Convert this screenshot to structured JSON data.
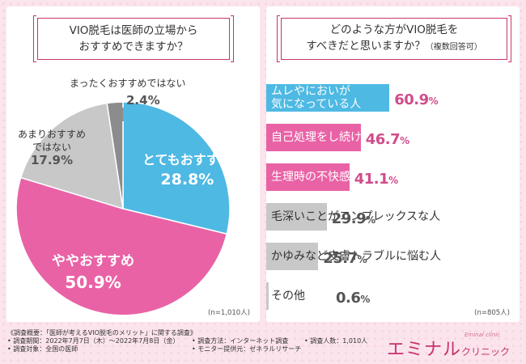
{
  "left": {
    "question_lines": [
      "VIO脱毛は医師の立場から",
      "おすすめできますか？"
    ],
    "sample_note": "(n=1,010人)"
  },
  "right": {
    "question_lines": [
      "どのような方がVIO脱毛を",
      "すべきだと思いますか？"
    ],
    "question_note": "（複数回答可）",
    "sample_note": "(n=805人)"
  },
  "chart_data": [
    {
      "type": "pie",
      "title": "VIO脱毛は医師の立場からおすすめできますか？",
      "unit": "%",
      "slices": [
        {
          "label": "とてもおすすめ",
          "value": 28.8,
          "color": "#4eb9e3"
        },
        {
          "label": "ややおすすめ",
          "value": 50.9,
          "color": "#e962a6"
        },
        {
          "label": "あまりおすすめではない",
          "label_lines": [
            "あまりおすすめ",
            "ではない"
          ],
          "value": 17.9,
          "color": "#c8c8c8"
        },
        {
          "label": "まったくおすすめではない",
          "value": 2.4,
          "color": "#8c8c8c"
        }
      ],
      "value_texts": [
        "28.8%",
        "50.9%",
        "17.9%",
        "2.4%"
      ]
    },
    {
      "type": "bar",
      "orientation": "horizontal",
      "title": "どのような方がVIO脱毛をすべきだと思いますか？（複数回答可）",
      "unit": "%",
      "categories": [
        "ムレやにおいが気になっている人",
        "自己処理をし続けている人",
        "生理時の不快感がある人",
        "毛深いことがコンプレックスな人",
        "かゆみなど皮膚トラブルに悩む人",
        "その他"
      ],
      "category_lines": [
        [
          "ムレやにおいが",
          "気になっている人"
        ],
        [
          "自己処理をし続けている人"
        ],
        [
          "生理時の不快感がある人"
        ],
        [
          "毛深いことがコンプレックスな人"
        ],
        [
          "かゆみなど皮膚トラブルに悩む人"
        ],
        [
          "その他"
        ]
      ],
      "values": [
        60.9,
        46.7,
        41.1,
        29.9,
        25.7,
        0.6
      ],
      "value_labels": [
        "60.9",
        "46.7",
        "41.1",
        "29.9",
        "25.7",
        "0.6"
      ],
      "value_unit": "%",
      "colors": [
        "#4eb9e3",
        "#e962a6",
        "#e962a6",
        "#c8c8c8",
        "#c8c8c8",
        "#c8c8c8"
      ],
      "xlim": [
        0,
        100
      ]
    }
  ],
  "survey": {
    "title": "《調査概要：「医師が考えるVIO脱毛のメリット」に関する調査》",
    "period": "• 調査期間：2022年7月7日（木）〜2022年7月8日（金）",
    "method": "• 調査方法：インターネット調査",
    "count": "• 調査人数：1,010人",
    "target": "• 調査対象：全国の医師",
    "provider": "• モニター提供元：ゼネラルリサーチ"
  },
  "logo": {
    "main": "エミナル",
    "suffix": "クリニック",
    "sub_en": "Eminal clinic"
  }
}
